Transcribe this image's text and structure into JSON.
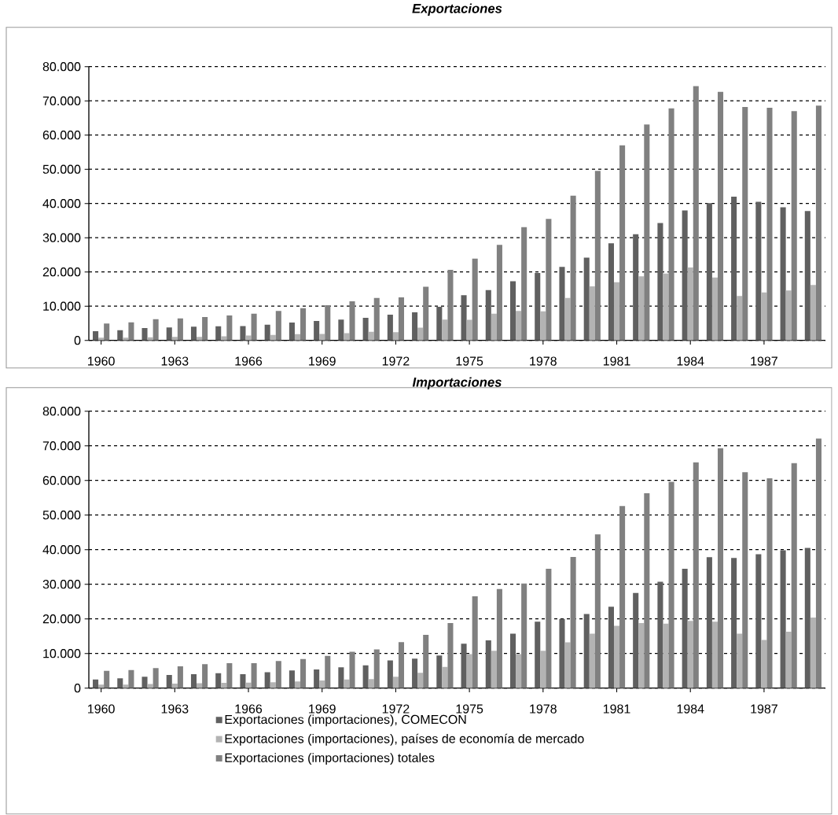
{
  "chart_data": [
    {
      "type": "bar",
      "title": "Exportaciones",
      "grid": "y",
      "categories": [
        "1960",
        null,
        null,
        "1963",
        null,
        null,
        "1966",
        null,
        null,
        "1969",
        null,
        null,
        "1972",
        null,
        null,
        "1975",
        null,
        null,
        "1978",
        null,
        null,
        "1981",
        null,
        null,
        "1984",
        null,
        null,
        "1987",
        null,
        null
      ],
      "ylim": [
        0,
        80000
      ],
      "yticks": [
        0,
        {
          "value": 10000,
          "label": "10.000"
        },
        {
          "value": 20000,
          "label": "20.000"
        },
        {
          "value": 30000,
          "label": "30.000"
        },
        {
          "value": 40000,
          "label": "40.000"
        },
        {
          "value": 50000,
          "label": "50.000"
        },
        {
          "value": 60000,
          "label": "60.000"
        },
        {
          "value": 70000,
          "label": "70.000"
        },
        {
          "value": 80000,
          "label": "80.000"
        }
      ],
      "series": [
        {
          "color": "#606060",
          "values": [
            2700,
            3000,
            3600,
            3800,
            4000,
            4100,
            4200,
            4600,
            5200,
            5700,
            6100,
            6600,
            7500,
            8200,
            9800,
            13200,
            14700,
            17300,
            19700,
            21500,
            24200,
            28400,
            31000,
            34300,
            38000,
            40100,
            42000,
            40500,
            38900,
            37800
          ]
        },
        {
          "color": "#b3b3b3",
          "values": [
            800,
            800,
            900,
            1000,
            1000,
            1200,
            1400,
            1600,
            1800,
            1900,
            2100,
            2500,
            2400,
            3700,
            6100,
            6000,
            7800,
            8600,
            8500,
            12400,
            15800,
            17000,
            18700,
            19500,
            21300,
            18400,
            13000,
            14000,
            14600,
            16200
          ]
        },
        {
          "color": "#808080",
          "values": [
            4900,
            5300,
            6200,
            6400,
            6800,
            7300,
            7800,
            8600,
            9400,
            10300,
            11400,
            12400,
            12600,
            15700,
            20600,
            23900,
            27900,
            33100,
            35500,
            42300,
            49500,
            57000,
            63100,
            67800,
            74300,
            72600,
            68200,
            68000,
            67000,
            68600
          ]
        }
      ]
    },
    {
      "type": "bar",
      "title": "Importaciones",
      "grid": "y",
      "legend": "bottom",
      "categories": [
        "1960",
        null,
        null,
        "1963",
        null,
        null,
        "1966",
        null,
        null,
        "1969",
        null,
        null,
        "1972",
        null,
        null,
        "1975",
        null,
        null,
        "1978",
        null,
        null,
        "1981",
        null,
        null,
        "1984",
        null,
        null,
        "1987",
        null,
        null
      ],
      "ylim": [
        0,
        80000
      ],
      "yticks": [
        0,
        {
          "value": 10000,
          "label": "10.000"
        },
        {
          "value": 20000,
          "label": "20.000"
        },
        {
          "value": 30000,
          "label": "30.000"
        },
        {
          "value": 40000,
          "label": "40.000"
        },
        {
          "value": 50000,
          "label": "50.000"
        },
        {
          "value": 60000,
          "label": "60.000"
        },
        {
          "value": 70000,
          "label": "70.000"
        },
        {
          "value": 80000,
          "label": "80.000"
        }
      ],
      "series": [
        {
          "name": "Exportaciones (importaciones), COMECON",
          "color": "#606060",
          "values": [
            2500,
            2800,
            3300,
            3800,
            4000,
            4300,
            4000,
            4600,
            5100,
            5400,
            6000,
            6600,
            8000,
            8500,
            9400,
            12800,
            13800,
            15700,
            19200,
            20000,
            21400,
            23500,
            27500,
            30700,
            34500,
            37800,
            37600,
            38700,
            39800,
            40500
          ]
        },
        {
          "name": "Exportaciones (importaciones), países de economía de mercado",
          "color": "#b3b3b3",
          "values": [
            1000,
            1000,
            1200,
            1300,
            1400,
            1500,
            1600,
            1700,
            1900,
            2200,
            2500,
            2600,
            3300,
            4400,
            6100,
            9800,
            10800,
            9800,
            10800,
            13200,
            15700,
            18000,
            18800,
            18600,
            19400,
            19200,
            15700,
            13900,
            16300,
            20400
          ]
        },
        {
          "name": "Exportaciones (importaciones) totales",
          "color": "#808080",
          "values": [
            5000,
            5200,
            5800,
            6300,
            6900,
            7200,
            7200,
            7800,
            8400,
            9300,
            10500,
            11200,
            13300,
            15400,
            18800,
            26500,
            28600,
            30200,
            34500,
            37900,
            44400,
            52600,
            56300,
            59600,
            65200,
            69300,
            62400,
            60600,
            65000,
            72100
          ]
        }
      ]
    }
  ]
}
